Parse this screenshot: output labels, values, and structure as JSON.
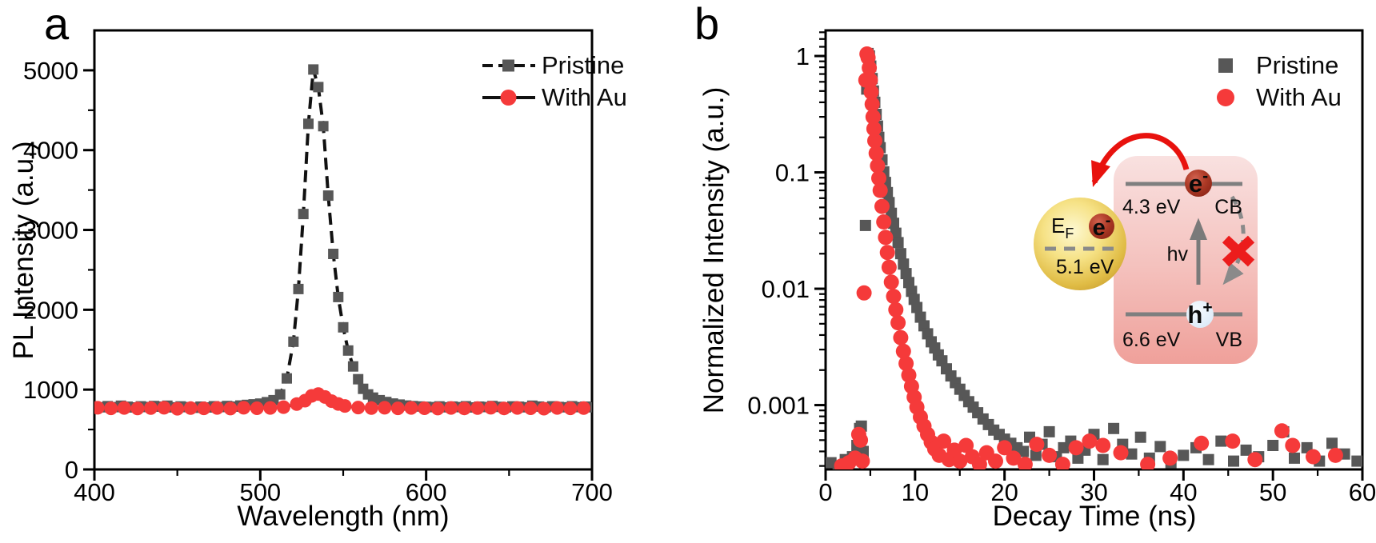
{
  "figure": {
    "panel_a_label": "a",
    "panel_b_label": "b"
  },
  "colors": {
    "pristine": "#575757",
    "with_au": "#f53a3a",
    "line": "#111111",
    "axis": "#000000",
    "band_line": "#7f7f7f",
    "inset_box_top": "#f9e1e0",
    "inset_box_bottom": "#efa09a",
    "gold": "#e0bc45",
    "electron": "#ad3a26",
    "hole": "#d8e8f7",
    "cross": "#ec1c1c",
    "arrow_red": "#e8120e"
  },
  "chart_data": [
    {
      "id": "panel_a",
      "type": "line",
      "title": "",
      "xlabel": "Wavelength (nm)",
      "ylabel": "PL Intensity (a.u.)",
      "xlim": [
        400,
        700
      ],
      "ylim": [
        0,
        5500
      ],
      "xticks": [
        400,
        500,
        600,
        700
      ],
      "xtick_labels": [
        "400",
        "500",
        "600",
        "700"
      ],
      "xminor": [
        450,
        550,
        650
      ],
      "yticks": [
        0,
        1000,
        2000,
        3000,
        4000,
        5000
      ],
      "ytick_labels": [
        "0",
        "1000",
        "2000",
        "3000",
        "4000",
        "5000"
      ],
      "yminor": [
        500,
        1500,
        2500,
        3500,
        4500
      ],
      "grid": false,
      "legend_position": "top-right",
      "series": [
        {
          "name": "Pristine",
          "marker": "square",
          "marker_size": 13,
          "line": "dashed",
          "line_width": 4,
          "color": "pristine",
          "line_color": "line",
          "x": [
            400,
            404,
            408,
            412,
            416,
            420,
            424,
            428,
            432,
            436,
            440,
            444,
            448,
            452,
            456,
            460,
            464,
            468,
            472,
            476,
            480,
            484,
            488,
            492,
            496,
            500,
            504,
            508,
            512,
            516,
            520,
            523,
            526,
            529,
            532,
            535,
            538,
            541,
            544,
            547,
            550,
            553,
            556,
            559,
            562,
            565,
            568,
            572,
            576,
            580,
            584,
            588,
            592,
            596,
            600,
            604,
            608,
            612,
            616,
            620,
            624,
            628,
            632,
            636,
            640,
            644,
            648,
            652,
            656,
            660,
            664,
            668,
            672,
            676,
            680,
            684,
            688,
            692,
            696,
            700
          ],
          "y": [
            790,
            778,
            792,
            780,
            798,
            785,
            776,
            790,
            781,
            794,
            786,
            798,
            777,
            789,
            780,
            772,
            786,
            776,
            791,
            781,
            794,
            786,
            800,
            808,
            815,
            824,
            843,
            868,
            940,
            1140,
            1600,
            2260,
            3200,
            4330,
            5010,
            4790,
            4300,
            3430,
            2700,
            2160,
            1780,
            1490,
            1290,
            1130,
            1010,
            940,
            900,
            868,
            845,
            825,
            812,
            800,
            793,
            788,
            784,
            780,
            789,
            778,
            787,
            780,
            791,
            776,
            786,
            781,
            794,
            783,
            776,
            789,
            785,
            778,
            798,
            787,
            776,
            790,
            782,
            778,
            791,
            780,
            786,
            778
          ]
        },
        {
          "name": "With Au",
          "marker": "circle",
          "marker_size": 17,
          "line": "solid",
          "line_width": 3.5,
          "color": "with_au",
          "line_color": "line",
          "x": [
            402,
            410,
            418,
            426,
            434,
            442,
            450,
            458,
            466,
            474,
            482,
            490,
            498,
            506,
            514,
            522,
            527,
            531,
            535,
            539,
            543,
            547,
            551,
            559,
            567,
            575,
            583,
            591,
            599,
            607,
            615,
            623,
            631,
            639,
            647,
            655,
            663,
            671,
            679,
            687,
            695
          ],
          "y": [
            772,
            765,
            770,
            763,
            768,
            772,
            760,
            768,
            765,
            770,
            762,
            772,
            766,
            770,
            780,
            818,
            862,
            922,
            945,
            908,
            856,
            820,
            795,
            775,
            768,
            772,
            765,
            770,
            766,
            762,
            770,
            764,
            768,
            772,
            764,
            770,
            766,
            761,
            770,
            765,
            768
          ]
        }
      ]
    },
    {
      "id": "panel_b",
      "type": "scatter",
      "title": "",
      "xlabel": "Decay Time (ns)",
      "ylabel": "Normalized Intensity (a.u.)",
      "xlim": [
        0,
        60
      ],
      "ylim": [
        0.00028,
        1.66
      ],
      "yscale": "log",
      "xticks": [
        0,
        10,
        20,
        30,
        40,
        50,
        60
      ],
      "xtick_labels": [
        "0",
        "10",
        "20",
        "30",
        "40",
        "50",
        "60"
      ],
      "xminor": [
        5,
        15,
        25,
        35,
        45,
        55
      ],
      "yticks": [
        1,
        0.1,
        0.01,
        0.001
      ],
      "ytick_labels": [
        "1",
        "0.1",
        "0.01",
        "0.001"
      ],
      "yminor_extra": [
        1.2,
        1.4,
        1.6
      ],
      "grid": false,
      "legend_position": "top-right",
      "series": [
        {
          "name": "Pristine",
          "marker": "square",
          "marker_size": 14,
          "line": "none",
          "color": "pristine",
          "x": [
            0.6,
            1.4,
            2.2,
            3.0,
            3.5,
            3.8,
            4.0,
            4.2,
            4.45,
            4.6,
            4.75,
            4.9,
            5.05,
            5.2,
            5.35,
            5.5,
            5.65,
            5.8,
            5.95,
            6.1,
            6.3,
            6.5,
            6.7,
            6.9,
            7.1,
            7.35,
            7.6,
            7.85,
            8.1,
            8.4,
            8.7,
            9.0,
            9.3,
            9.6,
            9.9,
            10.2,
            10.6,
            11.0,
            11.4,
            11.8,
            12.2,
            12.6,
            13.0,
            13.5,
            14.0,
            14.5,
            15.0,
            15.5,
            16.0,
            16.5,
            17.0,
            17.6,
            18.2,
            18.8,
            19.4,
            20.0,
            20.7,
            21.4,
            22.1,
            22.8,
            23.5,
            24.2,
            25.0,
            25.8,
            26.6,
            27.4,
            28.2,
            29.0,
            30.0,
            31.0,
            32.2,
            33.2,
            34.2,
            35.2,
            36.2,
            37.4,
            38.6,
            40.0,
            41.4,
            42.8,
            44.2,
            45.6,
            47.0,
            48.4,
            50.0,
            51.2,
            52.4,
            53.8,
            55.2,
            56.6,
            58.0,
            59.4
          ],
          "y": [
            0.00032,
            0.0003,
            0.00034,
            0.00036,
            0.00045,
            0.00063,
            0.00066,
            0.0004,
            0.035,
            0.52,
            1.05,
            1.0,
            0.82,
            0.64,
            0.5,
            0.4,
            0.315,
            0.25,
            0.2,
            0.163,
            0.128,
            0.101,
            0.082,
            0.067,
            0.055,
            0.0445,
            0.0365,
            0.03,
            0.0249,
            0.02,
            0.0163,
            0.0135,
            0.0113,
            0.0095,
            0.0081,
            0.0069,
            0.0057,
            0.0048,
            0.0041,
            0.0035,
            0.0031,
            0.0027,
            0.0024,
            0.00205,
            0.00178,
            0.00156,
            0.00137,
            0.00121,
            0.00107,
            0.00096,
            0.00086,
            0.00076,
            0.00068,
            0.00061,
            0.00056,
            0.00051,
            0.00047,
            0.00043,
            0.0004,
            0.00053,
            0.00037,
            0.00046,
            0.00059,
            0.00036,
            0.00043,
            0.00049,
            0.00035,
            0.00041,
            0.00056,
            0.00034,
            0.00063,
            0.00046,
            0.00038,
            0.00053,
            0.00035,
            0.00044,
            0.00032,
            0.00037,
            0.00043,
            0.00034,
            0.00049,
            0.00033,
            0.00041,
            0.00036,
            0.00045,
            0.00059,
            0.00035,
            0.00043,
            0.00033,
            0.00047,
            0.00038,
            0.00033
          ]
        },
        {
          "name": "With Au",
          "marker": "circle",
          "marker_size": 19,
          "line": "none",
          "color": "with_au",
          "x": [
            1.8,
            2.6,
            3.3,
            3.7,
            3.9,
            4.1,
            4.3,
            4.5,
            4.62,
            4.75,
            4.88,
            5.0,
            5.1,
            5.2,
            5.3,
            5.4,
            5.5,
            5.65,
            5.8,
            5.95,
            6.1,
            6.3,
            6.5,
            6.7,
            6.9,
            7.1,
            7.35,
            7.6,
            7.85,
            8.1,
            8.4,
            8.7,
            9.0,
            9.3,
            9.6,
            9.9,
            10.2,
            10.6,
            11.0,
            11.4,
            11.8,
            12.2,
            12.7,
            13.2,
            13.8,
            14.4,
            15.0,
            15.7,
            16.4,
            17.2,
            18.0,
            19.0,
            20.0,
            21.0,
            22.3,
            23.6,
            25.0,
            26.5,
            28.0,
            29.5,
            31.0,
            33.0,
            36.0,
            38.5,
            42.0,
            45.5,
            48.0,
            51.0,
            52.2,
            54.5,
            57.0
          ],
          "y": [
            0.0003,
            0.00032,
            0.00035,
            0.00056,
            0.0005,
            0.00033,
            0.0092,
            0.62,
            1.04,
            0.97,
            0.79,
            0.62,
            0.49,
            0.385,
            0.3,
            0.237,
            0.187,
            0.146,
            0.114,
            0.089,
            0.07,
            0.051,
            0.0375,
            0.0276,
            0.0205,
            0.0153,
            0.0114,
            0.0086,
            0.0066,
            0.0051,
            0.0038,
            0.0029,
            0.00228,
            0.00181,
            0.00145,
            0.00117,
            0.00096,
            0.00079,
            0.00066,
            0.00056,
            0.00048,
            0.00042,
            0.00037,
            0.00049,
            0.00034,
            0.00041,
            0.00033,
            0.00045,
            0.00036,
            0.00031,
            0.00039,
            0.00033,
            0.00043,
            0.00035,
            0.00031,
            0.00046,
            0.00037,
            0.00031,
            0.00043,
            0.00049,
            0.00045,
            0.00039,
            0.00031,
            0.00035,
            0.00047,
            0.00049,
            0.00034,
            0.0006,
            0.00045,
            0.00036,
            0.00037
          ]
        }
      ]
    }
  ],
  "inset": {
    "fermi_main": "E",
    "fermi_sub": "F",
    "work_function": "5.1 eV",
    "cb_energy": "4.3 eV",
    "cb_label": "CB",
    "photon_label": "hv",
    "vb_energy": "6.6 eV",
    "vb_label": "VB",
    "electron_main": "e",
    "electron_sup": "-",
    "hole_main": "h",
    "hole_sup": "+"
  }
}
